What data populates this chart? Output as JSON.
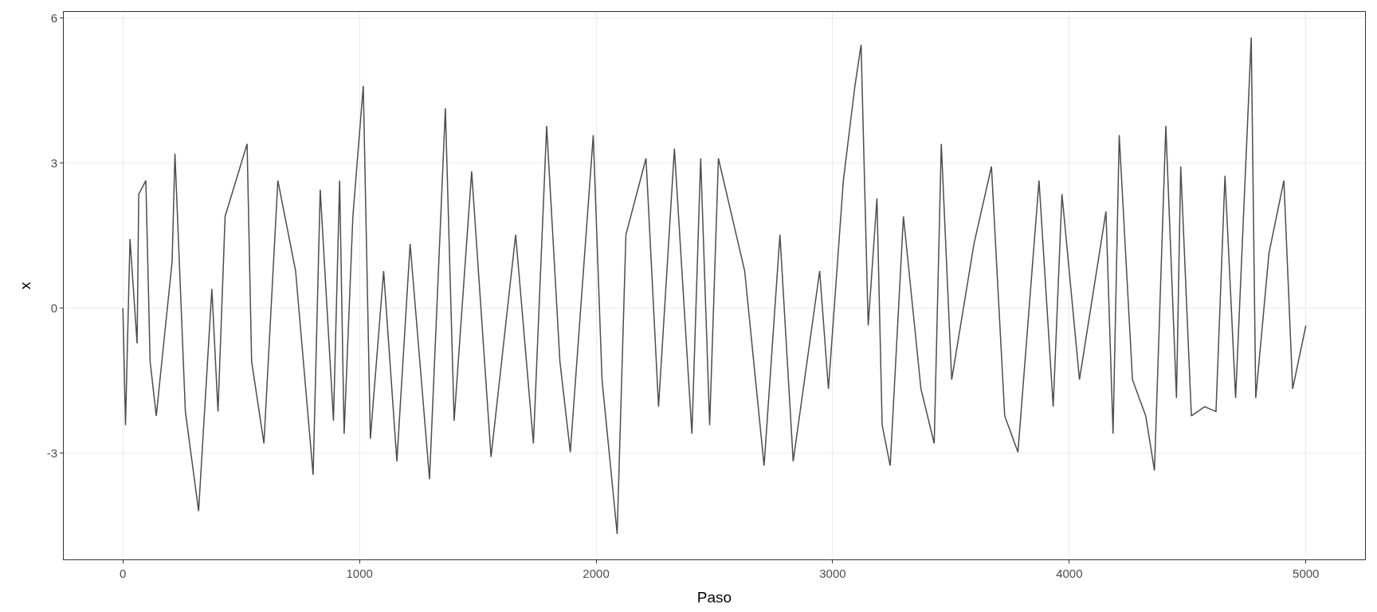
{
  "chart_data": {
    "type": "line",
    "xlabel": "Paso",
    "ylabel": "x",
    "xlim": [
      -250,
      5250
    ],
    "xticks": [
      0,
      1000,
      2000,
      3000,
      4000,
      5000
    ],
    "ylim": [
      -5.2,
      6.13
    ],
    "yticks": [
      -3,
      0,
      3,
      6
    ],
    "grid": true,
    "legend": false,
    "marker": "none",
    "line_style": "solid",
    "series": [
      {
        "color": "#4d4d4d",
        "x": [
          0,
          11,
          30,
          60,
          67,
          97,
          115,
          141,
          208,
          220,
          264,
          320,
          376,
          402,
          432,
          525,
          544,
          596,
          655,
          730,
          804,
          834,
          890,
          916,
          935,
          972,
          1016,
          1046,
          1102,
          1158,
          1214,
          1296,
          1363,
          1400,
          1474,
          1556,
          1660,
          1735,
          1791,
          1847,
          1891,
          1988,
          2025,
          2089,
          2126,
          2211,
          2264,
          2331,
          2405,
          2442,
          2480,
          2517,
          2628,
          2710,
          2777,
          2833,
          2945,
          2982,
          3045,
          3094,
          3120,
          3150,
          3187,
          3209,
          3243,
          3299,
          3373,
          3429,
          3459,
          3503,
          3597,
          3671,
          3727,
          3783,
          3872,
          3932,
          3969,
          4043,
          4155,
          4185,
          4211,
          4267,
          4323,
          4360,
          4408,
          4453,
          4471,
          4516,
          4572,
          4620,
          4658,
          4703,
          4769,
          4788,
          4844,
          4907,
          4944,
          5000
        ],
        "values": [
          0,
          -2.42,
          1.43,
          -0.73,
          2.36,
          2.64,
          -1.1,
          -2.23,
          0.96,
          3.2,
          -2.14,
          -4.2,
          0.4,
          -2.14,
          1.9,
          3.4,
          -1.1,
          -2.8,
          2.64,
          0.77,
          -3.45,
          2.45,
          -2.33,
          2.64,
          -2.6,
          1.9,
          4.6,
          -2.7,
          0.77,
          -3.17,
          1.33,
          -3.54,
          4.14,
          -2.33,
          2.83,
          -3.08,
          1.52,
          -2.8,
          3.77,
          -1.1,
          -2.98,
          3.58,
          -1.48,
          -4.67,
          1.52,
          3.1,
          -2.04,
          3.3,
          -2.6,
          3.1,
          -2.42,
          3.1,
          0.77,
          -3.26,
          1.52,
          -3.17,
          0.77,
          -1.67,
          2.64,
          4.6,
          5.45,
          -0.36,
          2.27,
          -2.42,
          -3.26,
          1.9,
          -1.67,
          -2.8,
          3.4,
          -1.48,
          1.33,
          2.93,
          -2.23,
          -2.98,
          2.64,
          -2.04,
          2.36,
          -1.48,
          2.0,
          -2.6,
          3.58,
          -1.48,
          -2.23,
          -3.36,
          3.77,
          -1.86,
          2.93,
          -2.23,
          -2.04,
          -2.14,
          2.74,
          -1.86,
          5.6,
          -1.86,
          1.14,
          2.64,
          -1.67,
          -0.36
        ]
      }
    ]
  }
}
